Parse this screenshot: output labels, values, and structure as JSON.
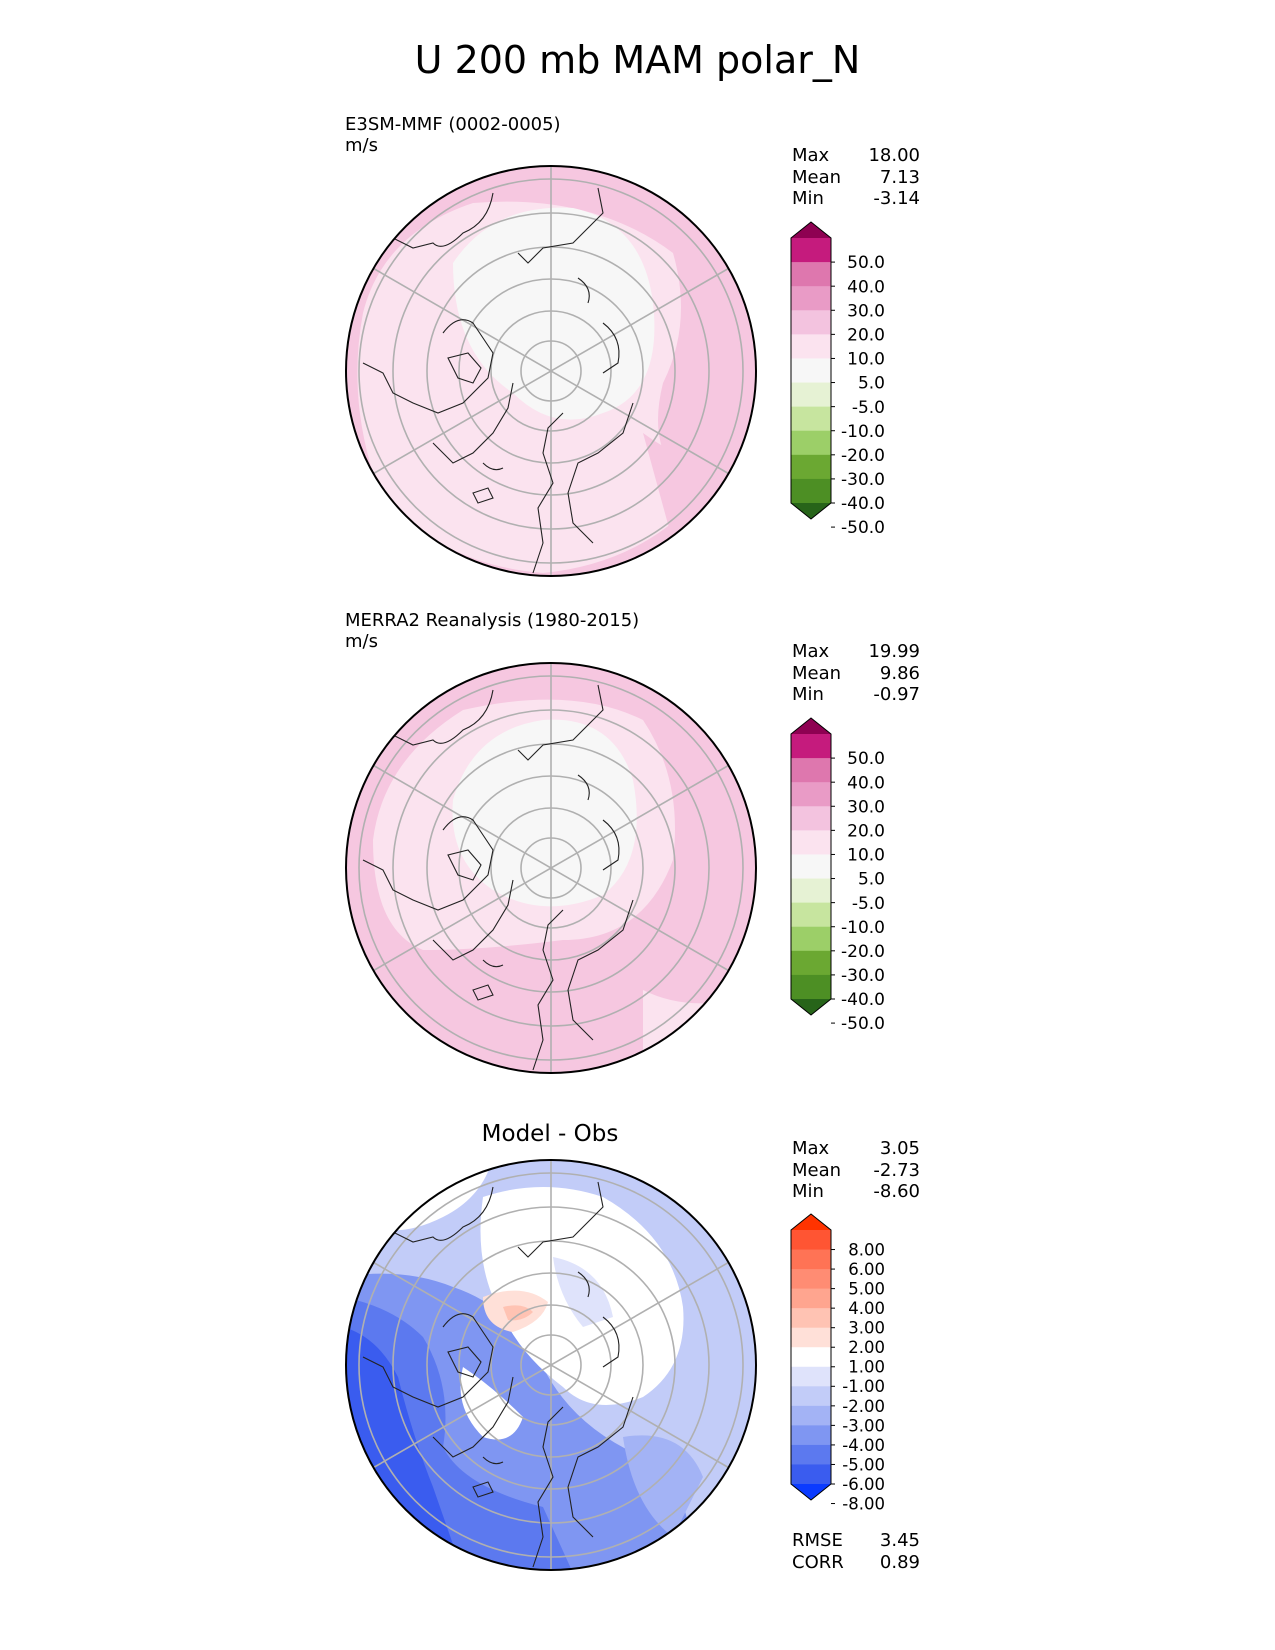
{
  "figure": {
    "title": "U 200 mb MAM polar_N"
  },
  "panels": [
    {
      "label_line1": "E3SM-MMF (0002-0005)",
      "label_line2": "m/s",
      "title": "",
      "stats": [
        {
          "label": "Max",
          "value": "18.00"
        },
        {
          "label": "Mean",
          "value": "7.13"
        },
        {
          "label": "Min",
          "value": "-3.14"
        }
      ],
      "colorbar_ticks": [
        "50.0",
        "40.0",
        "30.0",
        "20.0",
        "10.0",
        "5.0",
        "-5.0",
        "-10.0",
        "-20.0",
        "-30.0",
        "-40.0",
        "-50.0"
      ],
      "colorbar_colors": [
        "#8e0152",
        "#c51b7d",
        "#de77ae",
        "#e99bc6",
        "#f3c3df",
        "#fbe3ef",
        "#f7f7f7",
        "#e6f2d4",
        "#c7e59f",
        "#9ccf68",
        "#6ba832",
        "#4d8f24",
        "#276419"
      ]
    },
    {
      "label_line1": "MERRA2 Reanalysis (1980-2015)",
      "label_line2": "m/s",
      "title": "",
      "stats": [
        {
          "label": "Max",
          "value": "19.99"
        },
        {
          "label": "Mean",
          "value": "9.86"
        },
        {
          "label": "Min",
          "value": "-0.97"
        }
      ],
      "colorbar_ticks": [
        "50.0",
        "40.0",
        "30.0",
        "20.0",
        "10.0",
        "5.0",
        "-5.0",
        "-10.0",
        "-20.0",
        "-30.0",
        "-40.0",
        "-50.0"
      ],
      "colorbar_colors": [
        "#8e0152",
        "#c51b7d",
        "#de77ae",
        "#e99bc6",
        "#f3c3df",
        "#fbe3ef",
        "#f7f7f7",
        "#e6f2d4",
        "#c7e59f",
        "#9ccf68",
        "#6ba832",
        "#4d8f24",
        "#276419"
      ]
    },
    {
      "label_line1": "",
      "label_line2": "",
      "title": "Model - Obs",
      "stats": [
        {
          "label": "Max",
          "value": "3.05"
        },
        {
          "label": "Mean",
          "value": "-2.73"
        },
        {
          "label": "Min",
          "value": "-8.60"
        }
      ],
      "colorbar_ticks": [
        "8.00",
        "6.00",
        "5.00",
        "4.00",
        "3.00",
        "2.00",
        "1.00",
        "-1.00",
        "-2.00",
        "-3.00",
        "-4.00",
        "-5.00",
        "-6.00",
        "-8.00"
      ],
      "colorbar_colors": [
        "#ff3300",
        "#ff5533",
        "#ff7355",
        "#ff8c73",
        "#ffa58f",
        "#ffc3b3",
        "#ffe0d8",
        "#ffffff",
        "#dfe3fb",
        "#c2ccf8",
        "#a3b3f5",
        "#7f96f2",
        "#5c79ef",
        "#3a5cef",
        "#0b3bff"
      ],
      "footer_stats": [
        {
          "label": "RMSE",
          "value": "3.45"
        },
        {
          "label": "CORR",
          "value": "0.89"
        }
      ]
    }
  ]
}
